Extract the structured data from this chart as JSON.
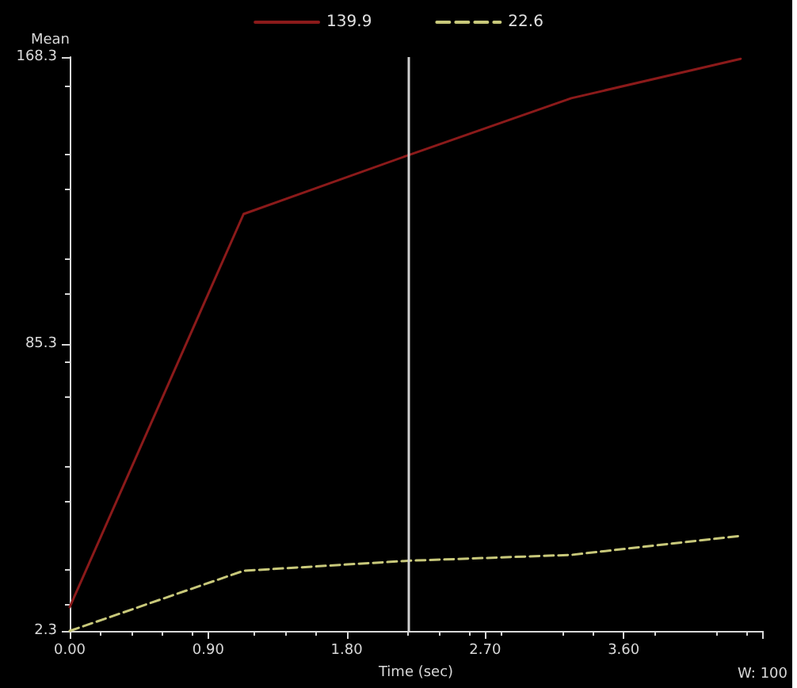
{
  "chart_data": {
    "type": "line",
    "ylabel": "Mean",
    "xlabel": "Time (sec)",
    "xlim": [
      0,
      4.5
    ],
    "xticks": [
      {
        "value": 0,
        "label": "0.00"
      },
      {
        "value": 0.9,
        "label": "0.90"
      },
      {
        "value": 1.8,
        "label": "1.80"
      },
      {
        "value": 2.7,
        "label": "2.70"
      },
      {
        "value": 3.6,
        "label": "3.60"
      },
      {
        "value": 4.5,
        "label": null
      }
    ],
    "annotations": [
      "W: 100"
    ],
    "ylim": [
      2.3,
      168.3
    ],
    "yticks": [
      2.3,
      85.3,
      168.3
    ],
    "series": [
      {
        "name": "139.9",
        "color": "#8b1a1a",
        "line_style": "solid",
        "x": [
          0,
          1.13,
          2.2,
          3.26,
          4.36
        ],
        "values": [
          9.2,
          122.9,
          139.9,
          156.4,
          167.8
        ]
      },
      {
        "name": "22.6",
        "color": "#c8c87a",
        "line_style": "dashed",
        "x": [
          0,
          1.13,
          2.2,
          3.26,
          4.36
        ],
        "values": [
          2.3,
          19.7,
          22.6,
          24.3,
          29.8
        ]
      }
    ],
    "ref_lines": [
      {
        "axis": "x",
        "value": 2.2,
        "color": "#d0d0d0"
      }
    ],
    "marker": "none",
    "grid": false,
    "legend": "top"
  }
}
